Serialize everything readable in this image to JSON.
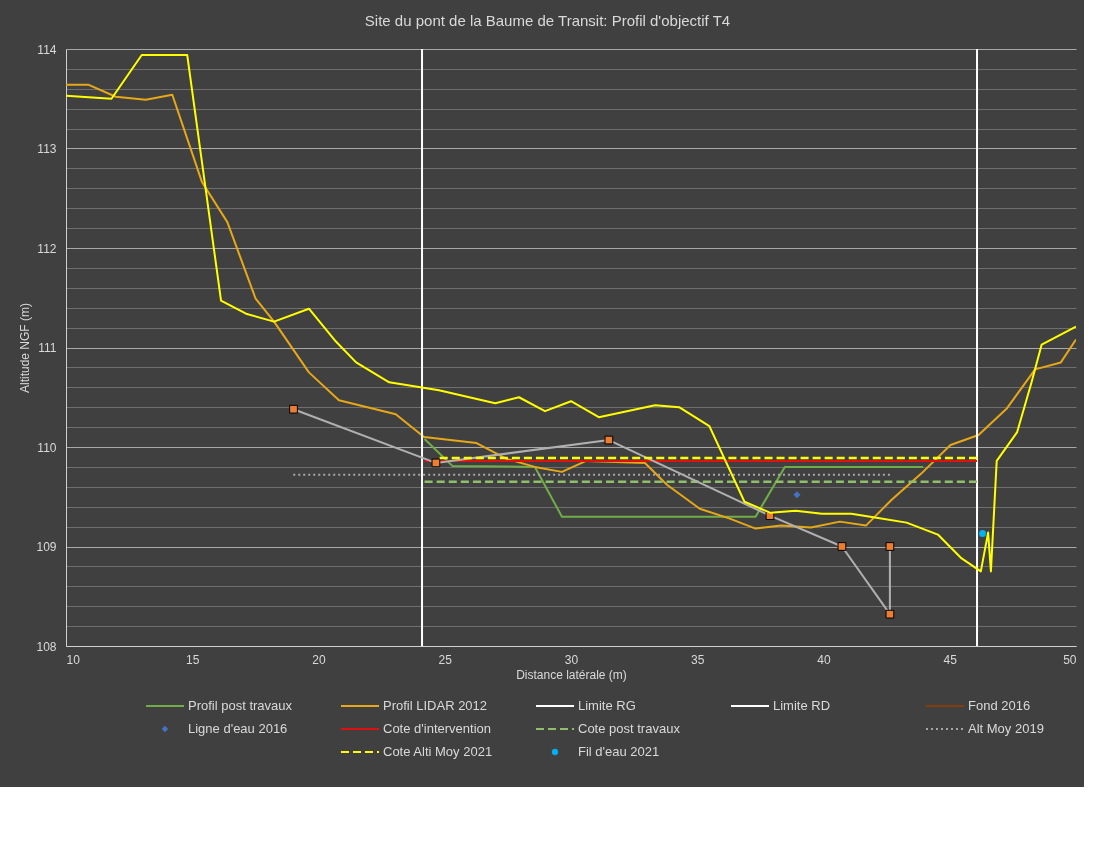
{
  "chart_data": {
    "type": "line",
    "title": "Site du pont de la Baume de Transit: Profil d'objectif T4",
    "xlabel": "Distance latérale (m)",
    "ylabel": "Altitude NGF (m)",
    "xlim": [
      10,
      50
    ],
    "xticks": [
      10,
      15,
      20,
      25,
      30,
      35,
      40,
      45,
      50
    ],
    "ylim": [
      108,
      114
    ],
    "yticks": [
      108,
      {
        "value": 108.2,
        "label": null
      },
      {
        "value": 108.4,
        "label": null
      },
      {
        "value": 108.6,
        "label": null
      },
      {
        "value": 108.8,
        "label": null
      },
      109,
      {
        "value": 109.2,
        "label": null
      },
      {
        "value": 109.4,
        "label": null
      },
      {
        "value": 109.6,
        "label": null
      },
      {
        "value": 109.8,
        "label": null
      },
      110,
      {
        "value": 110.2,
        "label": null
      },
      {
        "value": 110.4,
        "label": null
      },
      {
        "value": 110.6,
        "label": null
      },
      {
        "value": 110.8,
        "label": null
      },
      111,
      {
        "value": 111.2,
        "label": null
      },
      {
        "value": 111.4,
        "label": null
      },
      {
        "value": 111.6,
        "label": null
      },
      {
        "value": 111.8,
        "label": null
      },
      112,
      {
        "value": 112.2,
        "label": null
      },
      {
        "value": 112.4,
        "label": null
      },
      {
        "value": 112.6,
        "label": null
      },
      {
        "value": 112.8,
        "label": null
      },
      113,
      {
        "value": 113.2,
        "label": null
      },
      {
        "value": 113.4,
        "label": null
      },
      {
        "value": 113.6,
        "label": null
      },
      {
        "value": 113.8,
        "label": null
      },
      114
    ],
    "grid": "y",
    "legend": "bottom",
    "series": [
      {
        "name": "Profil post travaux",
        "color": "#70ad47",
        "line_style": "solid",
        "marker": "none",
        "x": [
          24.2,
          25.3,
          28.57,
          29.64,
          37.31,
          38.47,
          43.94
        ],
        "values": [
          110.08,
          109.81,
          109.8,
          109.3,
          109.3,
          109.8,
          109.8
        ]
      },
      {
        "name": "Profil LIDAR 2012",
        "color": "#e6a817",
        "line_style": "solid",
        "marker": "none",
        "x": [
          10,
          10.9,
          11.97,
          13.16,
          14.21,
          15.39,
          16.39,
          17.51,
          18.24,
          19.62,
          20.81,
          23.06,
          24.18,
          26.26,
          27.45,
          28.57,
          29.64,
          30.6,
          32.93,
          33.8,
          35.1,
          36.29,
          37.31,
          38.32,
          39.5,
          40.65,
          41.68,
          42.7,
          43.86,
          45.03,
          46.14,
          47.27,
          48.38,
          49.4,
          50
        ],
        "values": [
          113.64,
          113.64,
          113.52,
          113.49,
          113.54,
          112.66,
          112.26,
          111.49,
          111.26,
          110.75,
          110.47,
          110.33,
          110.1,
          110.04,
          109.88,
          109.8,
          109.75,
          109.86,
          109.84,
          109.62,
          109.38,
          109.28,
          109.18,
          109.21,
          109.19,
          109.25,
          109.21,
          109.47,
          109.73,
          110.02,
          110.12,
          110.39,
          110.78,
          110.85,
          111.08
        ]
      },
      {
        "name": "Limite RG",
        "color": "#ffffff",
        "line_style": "solid",
        "marker": "none",
        "x": [
          24.1,
          24.1
        ],
        "values": [
          108,
          114
        ]
      },
      {
        "name": "Limite RD",
        "color": "#ffffff",
        "line_style": "solid",
        "marker": "none",
        "x": [
          46.08,
          46.08
        ],
        "values": [
          108,
          114
        ]
      },
      {
        "name": "Fond 2016",
        "color": "#843c0c",
        "line_style": "solid",
        "marker": "none"
      },
      {
        "name": "Ligne d'eau 2016",
        "type": "scatter",
        "color": "#4472c4",
        "marker": "diamond",
        "x": [
          38.95
        ],
        "values": [
          109.52
        ]
      },
      {
        "name": "Cote d'intervention",
        "color": "#e01010",
        "line_style": "solid",
        "marker": "none",
        "x": [
          24.2,
          46.08
        ],
        "values": [
          109.86,
          109.86
        ]
      },
      {
        "name": "Cote post travaux",
        "color": "#8fbf6a",
        "line_style": "dashed",
        "marker": "none",
        "x": [
          24.2,
          46.08
        ],
        "values": [
          109.65,
          109.65
        ]
      },
      {
        "name": null,
        "color": "#b0b0b0",
        "line_style": "solid",
        "marker": "square",
        "x": [
          19.01,
          24.65,
          31.5,
          37.88,
          40.73,
          42.63,
          42.63
        ],
        "values": [
          110.38,
          109.84,
          110.07,
          109.31,
          109.0,
          108.32,
          109.0
        ]
      },
      {
        "name": "Alt Moy 2019",
        "color": "#a6a6a6",
        "line_style": "dotted",
        "marker": "none",
        "x": [
          19.0,
          42.63
        ],
        "values": [
          109.72,
          109.72
        ]
      },
      {
        "name": null,
        "color": "#ffff00",
        "line_style": "solid",
        "marker": "none",
        "x": [
          10,
          11.8,
          13.0,
          14.8,
          16.14,
          17.13,
          18.24,
          19.62,
          20.69,
          21.49,
          22.8,
          24.77,
          27.0,
          27.94,
          28.97,
          30.0,
          31.1,
          33.33,
          34.28,
          35.48,
          36.87,
          37.88,
          38.9,
          39.94,
          41.1,
          42.1,
          43.29,
          44.53,
          45.47,
          46.23,
          46.52,
          46.63,
          46.86,
          47.67,
          48.24,
          48.64,
          50
        ],
        "values": [
          113.53,
          113.5,
          113.94,
          113.94,
          111.47,
          111.34,
          111.26,
          111.39,
          111.06,
          110.85,
          110.65,
          110.57,
          110.44,
          110.5,
          110.36,
          110.46,
          110.3,
          110.42,
          110.4,
          110.21,
          109.45,
          109.34,
          109.36,
          109.33,
          109.33,
          109.29,
          109.24,
          109.12,
          108.88,
          108.75,
          109.14,
          108.75,
          109.86,
          110.15,
          110.65,
          111.03,
          111.21
        ]
      },
      {
        "name": "Cote Alti Moy 2021",
        "color": "#ffff00",
        "line_style": "dashed",
        "marker": "none",
        "x": [
          24.8,
          46.08
        ],
        "values": [
          109.89,
          109.89
        ]
      },
      {
        "name": "Fil d'eau 2021",
        "type": "scatter",
        "color": "#00b0f0",
        "marker": "circle",
        "x": [
          46.3
        ],
        "values": [
          109.13
        ]
      }
    ]
  }
}
